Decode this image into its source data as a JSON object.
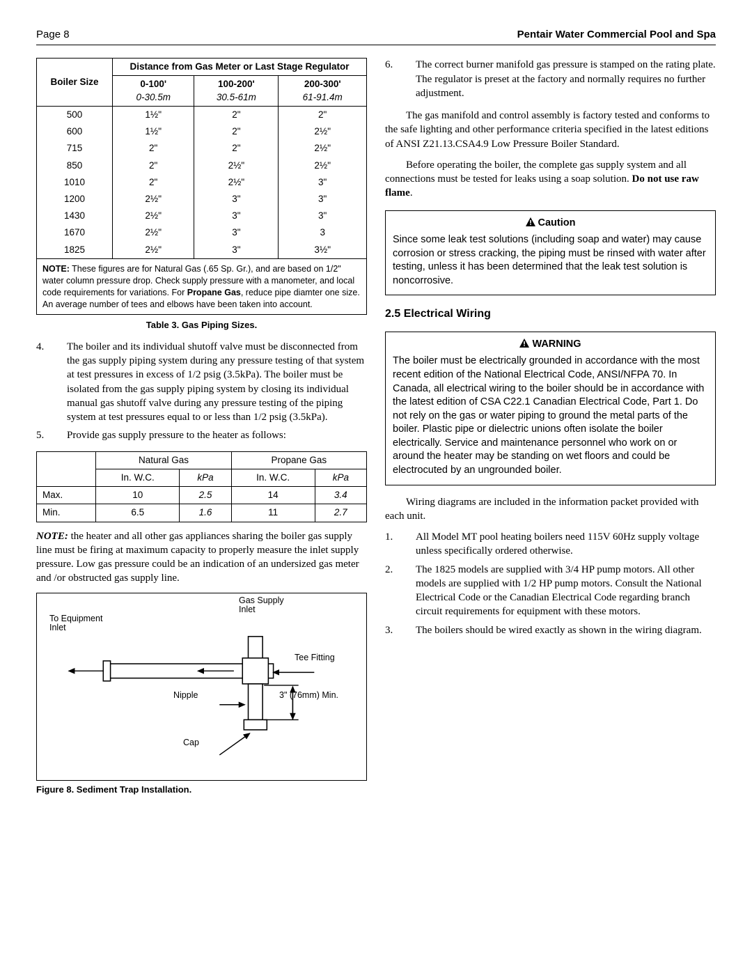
{
  "header": {
    "page_label": "Page 8",
    "title_right": "Pentair Water Commercial Pool and Spa"
  },
  "table3": {
    "col1_header": "Boiler Size",
    "group_header": "Distance from Gas Meter or Last Stage Regulator",
    "ranges": [
      {
        "label": "0-100'",
        "sub": "0-30.5m"
      },
      {
        "label": "100-200'",
        "sub": "30.5-61m"
      },
      {
        "label": "200-300'",
        "sub": "61-91.4m"
      }
    ],
    "rows": [
      {
        "size": "500",
        "c1": "1½\"",
        "c2": "2\"",
        "c3": "2\""
      },
      {
        "size": "600",
        "c1": "1½\"",
        "c2": "2\"",
        "c3": "2½\""
      },
      {
        "size": "715",
        "c1": "2\"",
        "c2": "2\"",
        "c3": "2½\""
      },
      {
        "size": "850",
        "c1": "2\"",
        "c2": "2½\"",
        "c3": "2½\""
      },
      {
        "size": "1010",
        "c1": "2\"",
        "c2": "2½\"",
        "c3": "3\""
      },
      {
        "size": "1200",
        "c1": "2½\"",
        "c2": "3\"",
        "c3": "3\""
      },
      {
        "size": "1430",
        "c1": "2½\"",
        "c2": "3\"",
        "c3": "3\""
      },
      {
        "size": "1670",
        "c1": "2½\"",
        "c2": "3\"",
        "c3": "3"
      },
      {
        "size": "1825",
        "c1": "2½\"",
        "c2": "3\"",
        "c3": "3½\""
      }
    ],
    "note_label": "NOTE:",
    "note_text": " These figures are for Natural Gas (.65 Sp. Gr.), and are based on 1/2\" water column pressure drop. Check supply pressure with a manometer, and local code requirements for variations. For ",
    "note_bold": "Propane Gas",
    "note_text2": ", reduce pipe diamter one size. An average number of tees and elbows have been taken into account.",
    "caption": "Table 3. Gas Piping Sizes."
  },
  "list_left": {
    "item4_num": "4.",
    "item4": "The boiler and its individual shutoff valve must be disconnected from the gas supply piping system during any pressure testing of that system at test pressures in excess of 1/2 psig (3.5kPa). The boiler must be isolated from the gas supply piping system by closing its individual manual gas shutoff valve during any pressure testing of the piping system at test pressures equal to or less than 1/2 psig (3.5kPa).",
    "item5_num": "5.",
    "item5": "Provide gas supply pressure to the heater as follows:"
  },
  "gas_pressure": {
    "col_ng": "Natural Gas",
    "col_pg": "Propane Gas",
    "sub_wc": "In. W.C.",
    "sub_kpa": "kPa",
    "rows": [
      {
        "label": "Max.",
        "ng_wc": "10",
        "ng_kpa": "2.5",
        "pg_wc": "14",
        "pg_kpa": "3.4"
      },
      {
        "label": "Min.",
        "ng_wc": "6.5",
        "ng_kpa": "1.6",
        "pg_wc": "11",
        "pg_kpa": "2.7"
      }
    ]
  },
  "note_left": {
    "lead": "NOTE:",
    "text": " the heater and all other gas appliances sharing the boiler gas supply line must be firing at maximum capacity to properly measure the inlet supply pressure. Low gas pressure could be an indication of an undersized gas meter and /or obstructed gas supply line."
  },
  "figure8": {
    "labels": {
      "gas_supply": "Gas Supply Inlet",
      "to_equip": "To Equipment Inlet",
      "tee": "Tee Fitting",
      "nipple": "Nipple",
      "min": "3\" (76mm) Min.",
      "cap": "Cap"
    },
    "caption": "Figure 8. Sediment Trap Installation."
  },
  "right": {
    "item6_num": "6.",
    "item6": "The correct burner manifold gas pressure is stamped on the rating plate. The regulator is preset at the factory and normally requires no further adjustment.",
    "para1": "The gas manifold and control assembly is factory tested and conforms to the safe lighting and other performance criteria specified in the latest editions of ANSI Z21.13.CSA4.9 Low Pressure Boiler Standard.",
    "para2a": "Before operating the boiler, the complete gas supply system and all connections must be tested for leaks using a soap solution. ",
    "para2b": "Do not use raw flame",
    "para2c": "."
  },
  "caution": {
    "heading": "Caution",
    "text": "Since some leak test solutions (including soap and water) may cause corrosion or stress cracking, the piping must be rinsed with water after testing, unless it has been determined that the leak test solution is noncorrosive."
  },
  "section25": "2.5  Electrical Wiring",
  "warning": {
    "heading": "WARNING",
    "text": "The boiler must be electrically grounded in accordance with the most recent edition of the National Electrical Code, ANSI/NFPA 70. In Canada, all electrical wiring to the boiler should be in accordance with the latest edition of CSA C22.1 Canadian Electrical Code, Part 1. Do not rely on the gas or water piping to ground the metal parts of the boiler. Plastic pipe or dielectric unions often isolate the boiler electrically. Service and maintenance personnel who work on or around the heater may be standing on wet floors and could be electrocuted by an ungrounded boiler."
  },
  "right_after_warning": "Wiring diagrams are included in the information packet provided with each unit.",
  "list_right": {
    "i1_num": "1.",
    "i1": "All Model MT pool heating boilers need 115V 60Hz supply voltage unless specifically ordered otherwise.",
    "i2_num": "2.",
    "i2": "The 1825 models are supplied with 3/4 HP pump motors. All other models are supplied with 1/2 HP pump motors. Consult the National Electrical Code or the Canadian Electrical Code regarding branch circuit requirements for equipment with these motors.",
    "i3_num": "3.",
    "i3": "The boilers should be wired exactly as shown in the wiring diagram."
  }
}
